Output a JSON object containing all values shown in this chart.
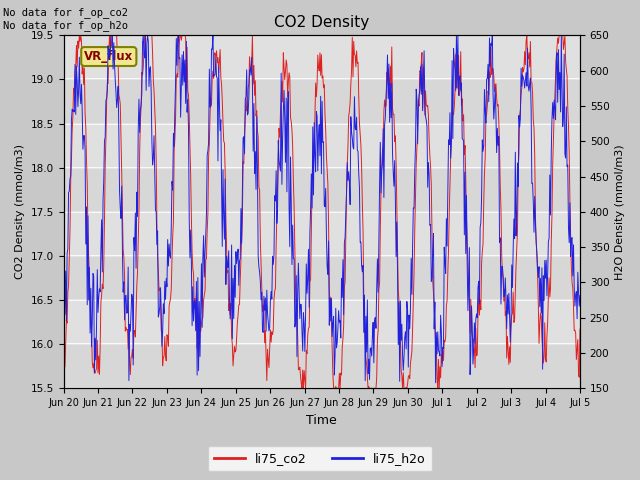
{
  "title": "CO2 Density",
  "xlabel": "Time",
  "ylabel_left": "CO2 Density (mmol/m3)",
  "ylabel_right": "H2O Density (mmol/m3)",
  "ylim_left": [
    15.5,
    19.5
  ],
  "ylim_right": [
    150,
    650
  ],
  "annotation_text": "No data for f_op_co2\nNo data for f_op_h2o",
  "vr_flux_label": "VR_flux",
  "legend_labels": [
    "li75_co2",
    "li75_h2o"
  ],
  "co2_color": "#dd2222",
  "h2o_color": "#2222dd",
  "background_color": "#c8c8c8",
  "plot_bg_color": "#e0e0e0",
  "grid_color": "#ffffff",
  "figsize": [
    6.4,
    4.8
  ],
  "dpi": 100,
  "tick_labels": [
    "Jun 20",
    "Jun 21",
    "Jun 22",
    "Jun 23",
    "Jun 24",
    "Jun 25",
    "Jun 26",
    "Jun 27",
    "Jun 28",
    "Jun 29",
    "Jun 30",
    "Jul 1",
    "Jul 2",
    "Jul 3",
    "Jul 4",
    "Jul 5"
  ],
  "yticks_left": [
    15.5,
    16.0,
    16.5,
    17.0,
    17.5,
    18.0,
    18.5,
    19.0,
    19.5
  ],
  "yticks_right": [
    150,
    200,
    250,
    300,
    350,
    400,
    450,
    500,
    550,
    600,
    650
  ]
}
